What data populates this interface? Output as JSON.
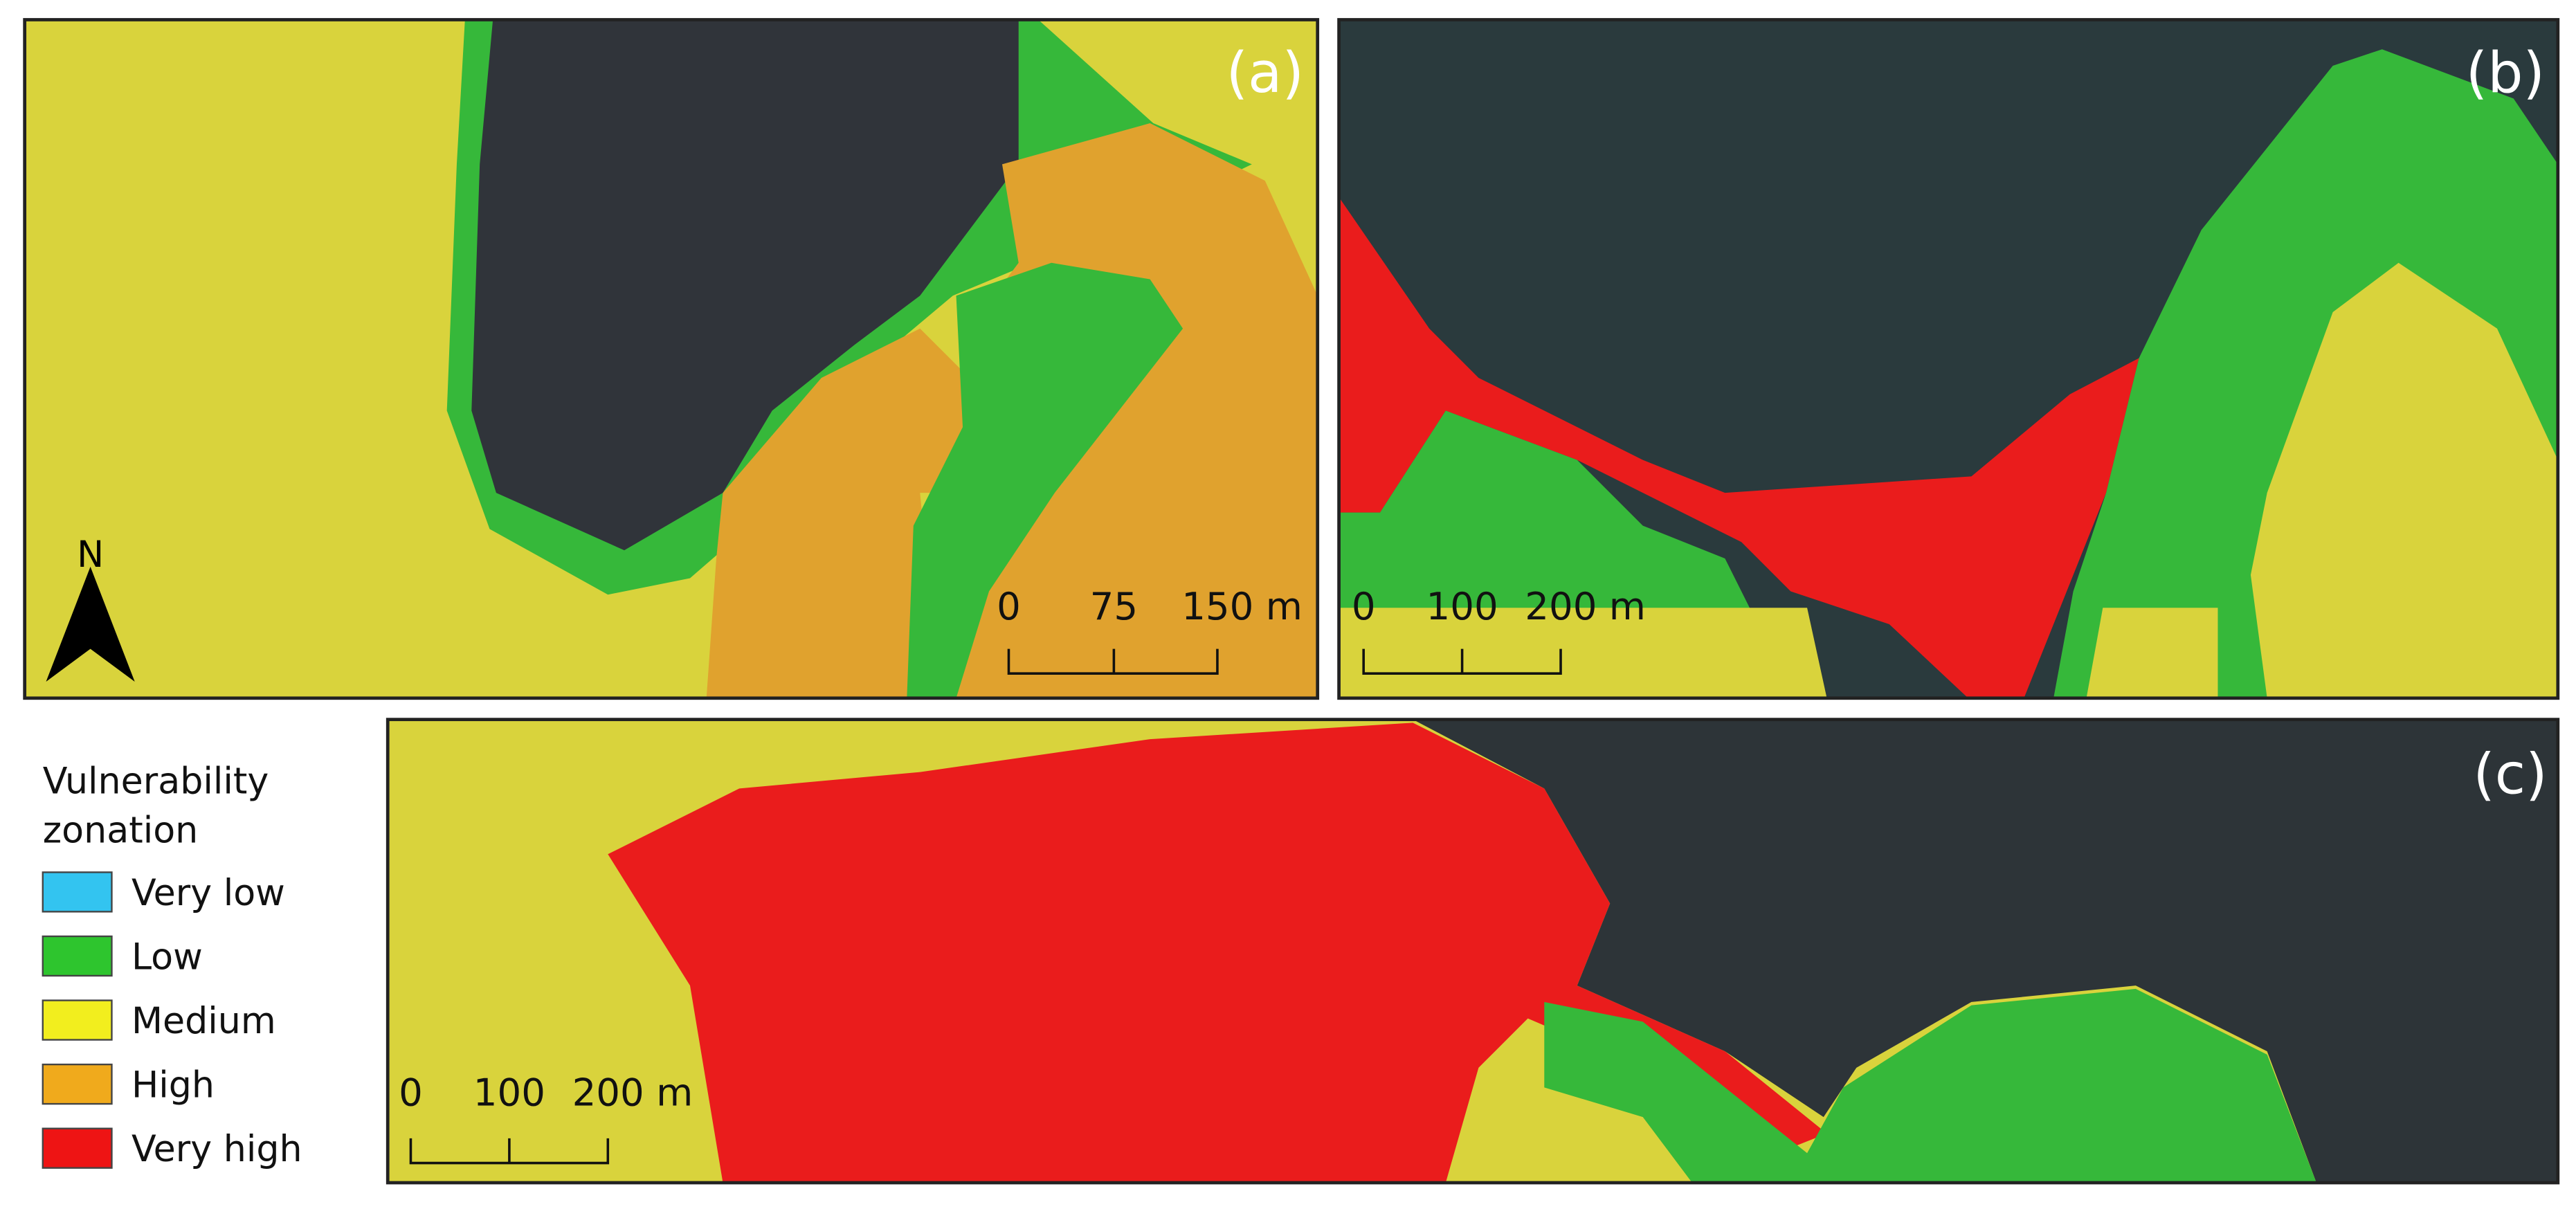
{
  "panels": [
    {
      "label": "(a)",
      "scale_labels": [
        "0",
        "75",
        "150 m"
      ],
      "north": "N"
    },
    {
      "label": "(b)",
      "scale_labels": [
        "0",
        "100",
        "200 m"
      ]
    },
    {
      "label": "(c)",
      "scale_labels": [
        "0",
        "100",
        "200 m"
      ]
    }
  ],
  "legend": {
    "title": [
      "Vulnerability",
      "zonation"
    ],
    "items": [
      {
        "label": "Very low",
        "color": "#33c4f0"
      },
      {
        "label": "Low",
        "color": "#2ec52e"
      },
      {
        "label": "Medium",
        "color": "#f2ee1e"
      },
      {
        "label": "High",
        "color": "#f0aa1c"
      },
      {
        "label": "Very high",
        "color": "#ee1414"
      }
    ]
  }
}
